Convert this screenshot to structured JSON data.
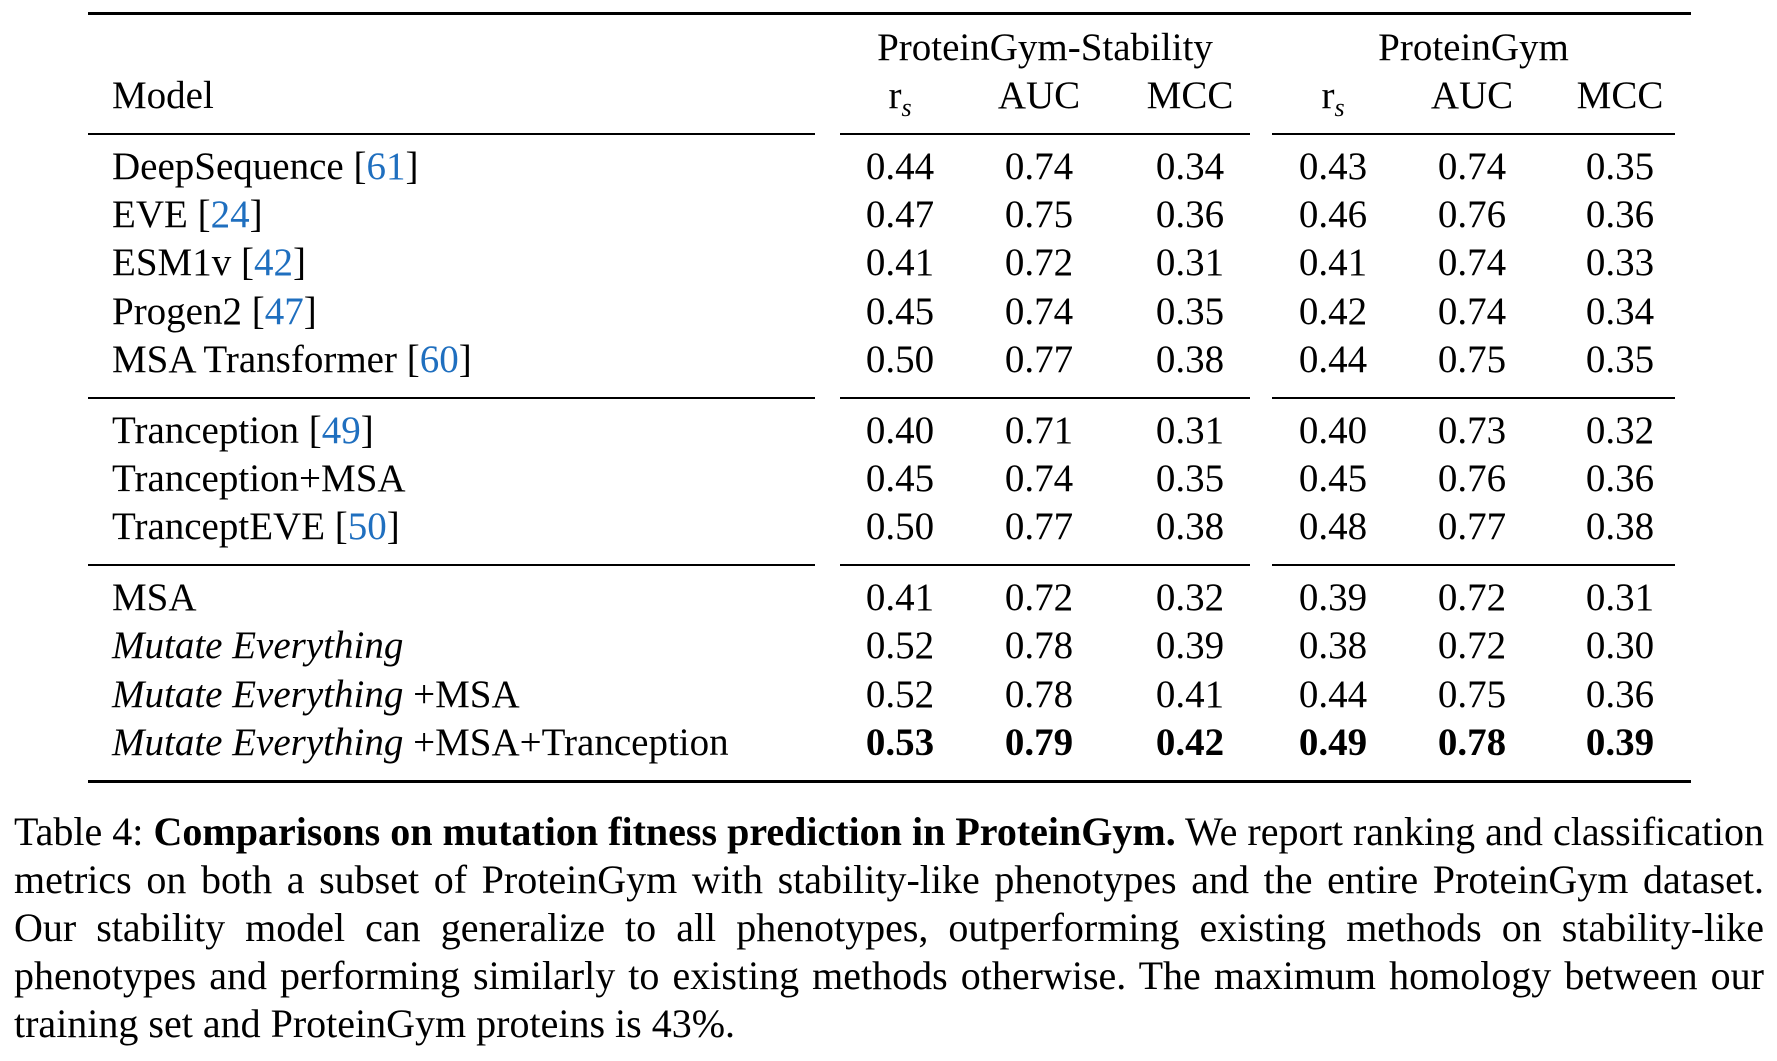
{
  "table": {
    "group_headers": [
      "ProteinGym-Stability",
      "ProteinGym"
    ],
    "model_header": "Model",
    "metric_headers": [
      {
        "base": "r",
        "sub": "s"
      },
      {
        "base": "AUC",
        "sub": ""
      },
      {
        "base": "MCC",
        "sub": ""
      },
      {
        "base": "r",
        "sub": "s"
      },
      {
        "base": "AUC",
        "sub": ""
      },
      {
        "base": "MCC",
        "sub": ""
      }
    ],
    "rows": [
      {
        "name": "DeepSequence",
        "italic_part": "",
        "suffix": "",
        "cite": "61",
        "values": [
          "0.44",
          "0.74",
          "0.34",
          "0.43",
          "0.74",
          "0.35"
        ],
        "bold": false
      },
      {
        "name": "EVE",
        "italic_part": "",
        "suffix": "",
        "cite": "24",
        "values": [
          "0.47",
          "0.75",
          "0.36",
          "0.46",
          "0.76",
          "0.36"
        ],
        "bold": false
      },
      {
        "name": "ESM1v",
        "italic_part": "",
        "suffix": "",
        "cite": "42",
        "values": [
          "0.41",
          "0.72",
          "0.31",
          "0.41",
          "0.74",
          "0.33"
        ],
        "bold": false
      },
      {
        "name": "Progen2",
        "italic_part": "",
        "suffix": "",
        "cite": "47",
        "values": [
          "0.45",
          "0.74",
          "0.35",
          "0.42",
          "0.74",
          "0.34"
        ],
        "bold": false
      },
      {
        "name": "MSA Transformer",
        "italic_part": "",
        "suffix": "",
        "cite": "60",
        "values": [
          "0.50",
          "0.77",
          "0.38",
          "0.44",
          "0.75",
          "0.35"
        ],
        "bold": false
      },
      {
        "name": "Tranception",
        "italic_part": "",
        "suffix": "",
        "cite": "49",
        "values": [
          "0.40",
          "0.71",
          "0.31",
          "0.40",
          "0.73",
          "0.32"
        ],
        "bold": false
      },
      {
        "name": "Tranception+MSA",
        "italic_part": "",
        "suffix": "",
        "cite": "",
        "values": [
          "0.45",
          "0.74",
          "0.35",
          "0.45",
          "0.76",
          "0.36"
        ],
        "bold": false
      },
      {
        "name": "TranceptEVE",
        "italic_part": "",
        "suffix": "",
        "cite": "50",
        "values": [
          "0.50",
          "0.77",
          "0.38",
          "0.48",
          "0.77",
          "0.38"
        ],
        "bold": false
      },
      {
        "name": "MSA",
        "italic_part": "",
        "suffix": "",
        "cite": "",
        "values": [
          "0.41",
          "0.72",
          "0.32",
          "0.39",
          "0.72",
          "0.31"
        ],
        "bold": false
      },
      {
        "name": "",
        "italic_part": "Mutate Everything",
        "suffix": "",
        "cite": "",
        "values": [
          "0.52",
          "0.78",
          "0.39",
          "0.38",
          "0.72",
          "0.30"
        ],
        "bold": false
      },
      {
        "name": "",
        "italic_part": "Mutate Everything",
        "suffix": "+MSA",
        "cite": "",
        "values": [
          "0.52",
          "0.78",
          "0.41",
          "0.44",
          "0.75",
          "0.36"
        ],
        "bold": false
      },
      {
        "name": "",
        "italic_part": "Mutate Everything",
        "suffix": "+MSA+Tranception",
        "cite": "",
        "values": [
          "0.53",
          "0.79",
          "0.42",
          "0.49",
          "0.78",
          "0.39"
        ],
        "bold": true
      }
    ]
  },
  "caption": {
    "label": "Table 4:",
    "title": "Comparisons on mutation fitness prediction in ProteinGym.",
    "body": "We report ranking and classification metrics on both a subset of ProteinGym with stability-like phenotypes and the entire ProteinGym dataset. Our stability model can generalize to all phenotypes, outperforming existing methods on stability-like phenotypes and performing similarly to existing methods otherwise. The maximum homology between our training set and ProteinGym proteins is 43%."
  }
}
